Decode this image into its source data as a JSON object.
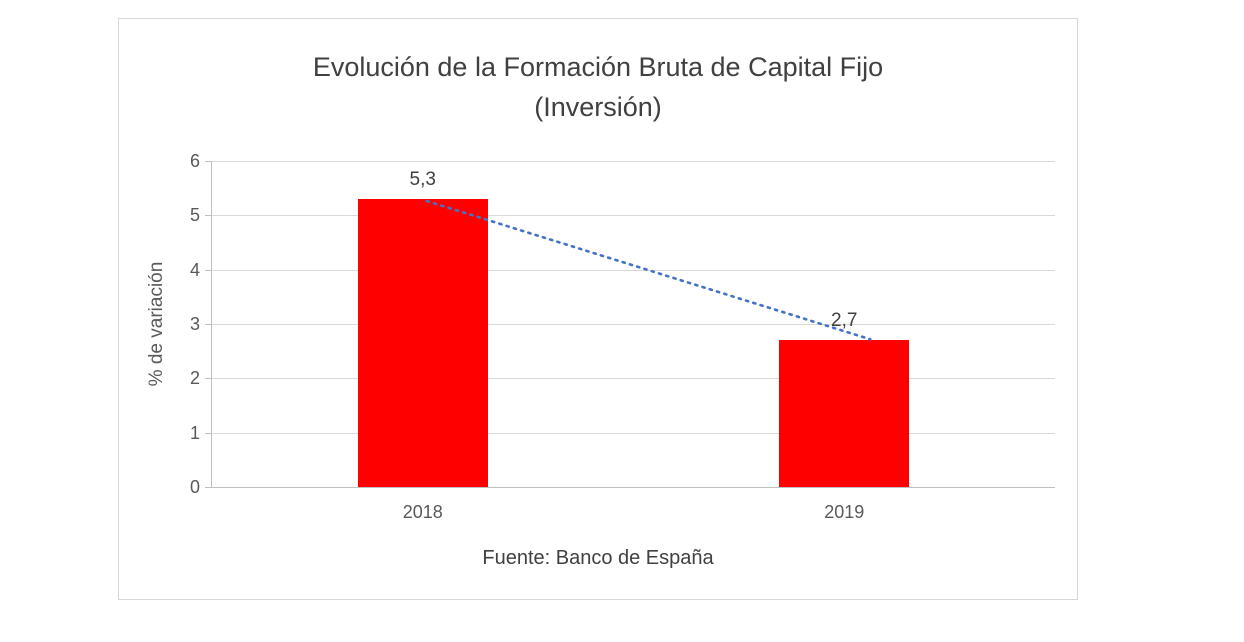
{
  "chart": {
    "title_line1": "Evolución de la Formación Bruta de Capital Fijo",
    "title_line2": "(Inversión)",
    "ylabel": "% de variación",
    "source": "Fuente: Banco de España"
  },
  "chart_data": {
    "type": "bar",
    "title": "Evolución de la Formación Bruta de Capital Fijo (Inversión)",
    "categories": [
      "2018",
      "2019"
    ],
    "values": [
      5.3,
      2.7
    ],
    "value_labels": [
      "5,3",
      "2,7"
    ],
    "xlabel": "Fuente: Banco de España",
    "ylabel": "% de variación",
    "ylim": [
      0,
      6
    ],
    "ytick_step": 1,
    "ytick_labels": [
      "0",
      "1",
      "2",
      "3",
      "4",
      "5",
      "6"
    ],
    "grid": true,
    "legend_position": "none",
    "bar_color": "#fe0000",
    "trendline": {
      "type": "linear",
      "style": "dotted",
      "color": "#4472c4"
    },
    "gridline_color": "#d9d9d9",
    "axis_color": "#bfbfbf",
    "text_color": "#595959"
  }
}
